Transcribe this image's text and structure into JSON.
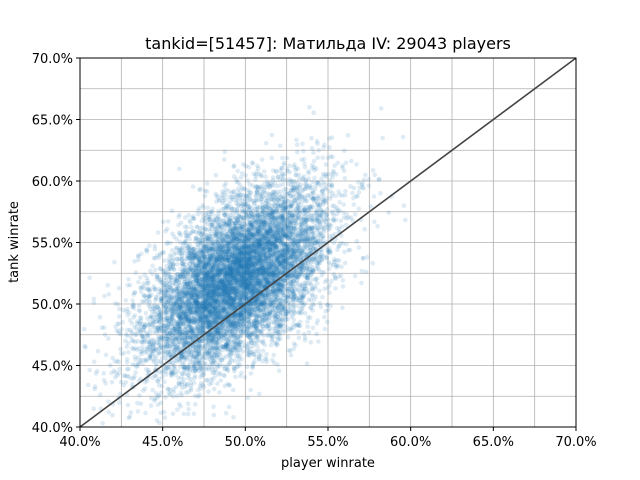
{
  "chart_data": {
    "type": "scatter",
    "title": "tankid=[51457]: Матильда IV: 29043 players",
    "xlabel": "player winrate",
    "ylabel": "tank winrate",
    "xlim": [
      0.4,
      0.7
    ],
    "ylim": [
      0.4,
      0.7
    ],
    "x_ticks": [
      0.4,
      0.45,
      0.5,
      0.55,
      0.6,
      0.65,
      0.7
    ],
    "x_tick_labels": [
      "40.0%",
      "45.0%",
      "50.0%",
      "55.0%",
      "60.0%",
      "65.0%",
      "70.0%"
    ],
    "y_ticks": [
      0.4,
      0.45,
      0.5,
      0.55,
      0.6,
      0.65,
      0.7
    ],
    "y_tick_labels": [
      "40.0%",
      "45.0%",
      "50.0%",
      "55.0%",
      "60.0%",
      "65.0%",
      "70.0%"
    ],
    "minor_grid_step": 0.025,
    "grid": true,
    "point_color": "#1f77b4",
    "point_alpha": 0.15,
    "reference_line": {
      "from": [
        0.4,
        0.4
      ],
      "to": [
        0.7,
        0.7
      ],
      "color": "#444444"
    },
    "distribution": {
      "n_players": 29043,
      "x_mean": 0.495,
      "x_std": 0.028,
      "y_mean": 0.52,
      "y_std": 0.038,
      "correlation": 0.55
    }
  }
}
